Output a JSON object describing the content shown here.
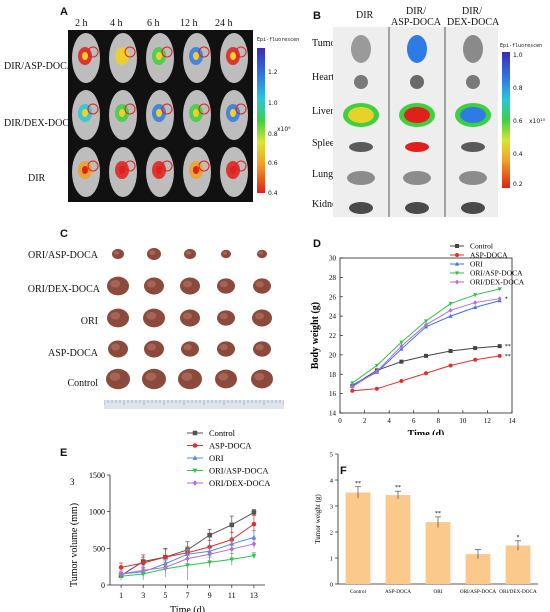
{
  "panel_a": {
    "letter": "A",
    "timepoints": [
      "2 h",
      "4 h",
      "6 h",
      "12 h",
      "24 h"
    ],
    "row_labels": [
      "DIR/ASP-DOCA",
      "DIR/DEX-DOCA",
      "DIR"
    ],
    "colorbar_title": "Epi-fluorescen",
    "colorbar_ticks": [
      "1.2",
      "1.0",
      "0.8",
      "0.6",
      "0.4"
    ],
    "colorbar_unit": "x10⁹"
  },
  "panel_b": {
    "letter": "B",
    "col_labels": [
      "DIR",
      "DIR/\nASP-DOCA",
      "DIR/\nDEX-DOCA"
    ],
    "organ_labels": [
      "Tumor",
      "Heart",
      "Liver",
      "Spleen",
      "Lung",
      "Kidney"
    ],
    "colorbar_title": "Epi-fluorescen",
    "colorbar_ticks": [
      "1.0",
      "0.8",
      "0.6",
      "0.4",
      "0.2"
    ],
    "colorbar_unit": "x10¹⁰"
  },
  "panel_c": {
    "letter": "C",
    "row_labels": [
      "ORI/ASP-DOCA",
      "ORI/DEX-DOCA",
      "ORI",
      "ASP-DOCA",
      "Control"
    ]
  },
  "panel_d": {
    "letter": "D",
    "chart_data": {
      "type": "line",
      "xlabel": "Time (d)",
      "ylabel": "Body weight (g)",
      "xlim": [
        0,
        14
      ],
      "ylim": [
        14,
        30
      ],
      "xticks": [
        0,
        2,
        4,
        6,
        8,
        10,
        12,
        14
      ],
      "yticks": [
        14,
        16,
        18,
        20,
        22,
        24,
        26,
        28,
        30
      ],
      "x": [
        1,
        3,
        5,
        7,
        9,
        11,
        13
      ],
      "series": [
        {
          "name": "Control",
          "color": "#444444",
          "marker": "square",
          "values": [
            16.8,
            18.4,
            19.3,
            19.9,
            20.4,
            20.7,
            20.9
          ],
          "annotation": "**"
        },
        {
          "name": "ASP-DOCA",
          "color": "#e0302a",
          "marker": "circle",
          "values": [
            16.3,
            16.5,
            17.3,
            18.1,
            18.9,
            19.5,
            19.9
          ],
          "annotation": "**"
        },
        {
          "name": "ORI",
          "color": "#3a74e0",
          "marker": "triangle-up",
          "values": [
            16.9,
            18.2,
            20.6,
            22.9,
            24.0,
            24.9,
            25.6
          ],
          "annotation": ""
        },
        {
          "name": "ORI/ASP-DOCA",
          "color": "#2ec24a",
          "marker": "triangle-down",
          "values": [
            17.1,
            18.9,
            21.3,
            23.5,
            25.3,
            26.2,
            26.8
          ],
          "annotation": ""
        },
        {
          "name": "ORI/DEX-DOCA",
          "color": "#b86ad8",
          "marker": "diamond",
          "values": [
            16.7,
            18.3,
            20.9,
            23.1,
            24.6,
            25.4,
            25.8
          ],
          "annotation": "*"
        }
      ]
    }
  },
  "panel_e": {
    "letter": "E",
    "chart_data": {
      "type": "line",
      "xlabel": "Time (d)",
      "ylabel": "Tumor volume (mm",
      "ylabel_sup": "3",
      "xlim": [
        0,
        14
      ],
      "ylim": [
        0,
        1500
      ],
      "xticks": [
        1,
        3,
        5,
        7,
        9,
        11,
        13
      ],
      "yticks": [
        0,
        500,
        1000,
        1500
      ],
      "x": [
        1,
        3,
        5,
        7,
        9,
        11,
        13
      ],
      "series": [
        {
          "name": "Control",
          "color": "#555555",
          "marker": "square",
          "values": [
            130,
            320,
            380,
            480,
            680,
            820,
            990
          ],
          "err": [
            40,
            90,
            120,
            110,
            80,
            120,
            40
          ]
        },
        {
          "name": "ASP-DOCA",
          "color": "#e0302a",
          "marker": "circle",
          "values": [
            240,
            300,
            380,
            440,
            520,
            620,
            830
          ],
          "err": [
            60,
            80,
            110,
            80,
            90,
            100,
            120
          ]
        },
        {
          "name": "ORI",
          "color": "#4a90e2",
          "marker": "triangle-up",
          "values": [
            150,
            180,
            290,
            420,
            460,
            560,
            650
          ],
          "err": [
            40,
            60,
            60,
            70,
            80,
            80,
            90
          ]
        },
        {
          "name": "ORI/ASP-DOCA",
          "color": "#2ec24a",
          "marker": "triangle-down",
          "values": [
            120,
            150,
            220,
            270,
            310,
            350,
            400
          ],
          "err": [
            50,
            80,
            110,
            200,
            70,
            80,
            40
          ]
        },
        {
          "name": "ORI/DEX-DOCA",
          "color": "#b86ad8",
          "marker": "diamond",
          "values": [
            150,
            200,
            240,
            360,
            420,
            490,
            560
          ],
          "err": [
            40,
            60,
            70,
            120,
            80,
            70,
            60
          ]
        }
      ]
    }
  },
  "panel_f": {
    "letter": "F",
    "chart_data": {
      "type": "bar",
      "ylabel": "Tumor weight (g)",
      "ylim": [
        0,
        5
      ],
      "yticks": [
        0,
        1,
        2,
        3,
        4,
        5
      ],
      "categories": [
        "Control",
        "ASP-DOCA",
        "ORI",
        "ORI/ASP-DOCA",
        "ORI/DEX-DOCA"
      ],
      "values": [
        3.52,
        3.42,
        2.38,
        1.15,
        1.48
      ],
      "err": [
        0.22,
        0.15,
        0.2,
        0.18,
        0.18
      ],
      "annotations": [
        "**",
        "**",
        "**",
        "",
        "*"
      ],
      "bar_color": "#fcc98d"
    }
  }
}
